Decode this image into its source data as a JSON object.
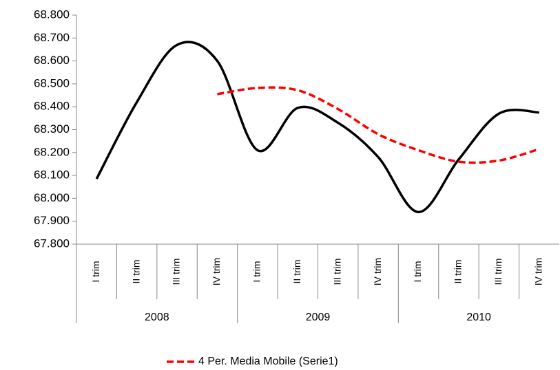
{
  "chart_data": {
    "type": "line",
    "categories": [
      "I trim",
      "II trim",
      "III trim",
      "IV trim",
      "I trim",
      "II trim",
      "III trim",
      "IV trim",
      "I trim",
      "II trim",
      "III trim",
      "IV trim"
    ],
    "groups": [
      "2008",
      "2009",
      "2010"
    ],
    "series": [
      {
        "color": "#000000",
        "values": [
          68085,
          68420,
          68670,
          68600,
          68210,
          68395,
          68330,
          68180,
          67940,
          68170,
          68370,
          68375
        ]
      },
      {
        "name": "4 Per. Media Mobile (Serie1)",
        "color": "#ff0000",
        "dashed": true,
        "values": [
          null,
          null,
          null,
          68455,
          68482,
          68472,
          68390,
          68280,
          68210,
          68160,
          68165,
          68215
        ]
      }
    ],
    "ylim": [
      67800,
      68800
    ],
    "yticks": [
      {
        "value": 67800,
        "label": "67.800"
      },
      {
        "value": 67900,
        "label": "67.900"
      },
      {
        "value": 68000,
        "label": "68.000"
      },
      {
        "value": 68100,
        "label": "68.100"
      },
      {
        "value": 68200,
        "label": "68.200"
      },
      {
        "value": 68300,
        "label": "68.300"
      },
      {
        "value": 68400,
        "label": "68.400"
      },
      {
        "value": 68500,
        "label": "68.500"
      },
      {
        "value": 68600,
        "label": "68.600"
      },
      {
        "value": 68700,
        "label": "68.700"
      },
      {
        "value": 68800,
        "label": "68.800"
      }
    ],
    "legend": "bottom"
  }
}
